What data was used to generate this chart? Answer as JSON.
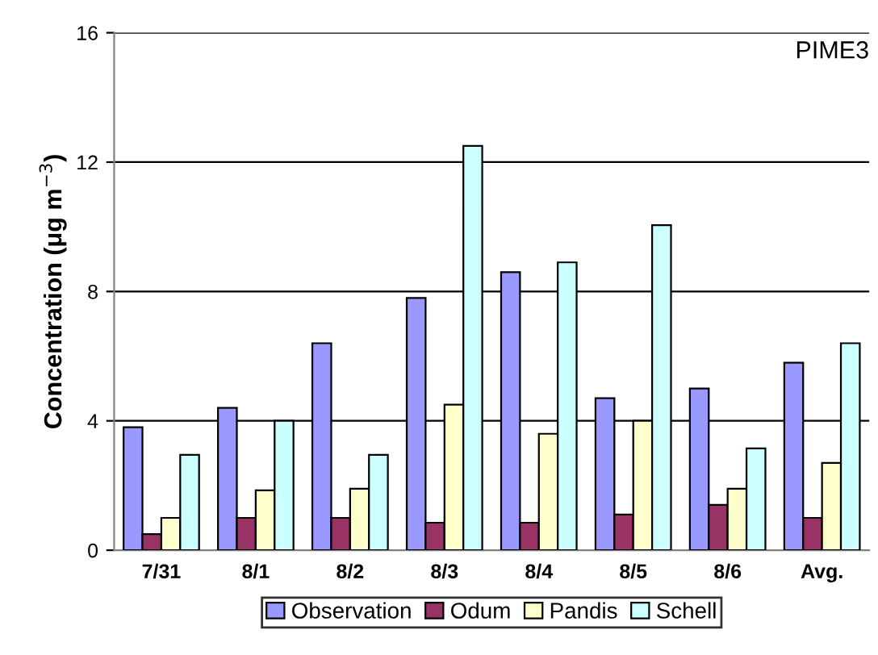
{
  "chart_data": {
    "type": "bar",
    "title": "PIME3",
    "ylabel": "Concentration (μg m$^{−3}$)",
    "categories": [
      "7/31",
      "8/1",
      "8/2",
      "8/3",
      "8/4",
      "8/5",
      "8/6",
      "Avg."
    ],
    "series": [
      {
        "name": "Observation",
        "color": "#9999ff",
        "values": [
          3.8,
          4.4,
          6.4,
          7.8,
          8.6,
          4.7,
          5.0,
          5.8
        ]
      },
      {
        "name": "Odum",
        "color": "#993366",
        "values": [
          0.5,
          1.0,
          1.0,
          0.85,
          0.85,
          1.1,
          1.4,
          1.0
        ]
      },
      {
        "name": "Pandis",
        "color": "#ffffcc",
        "values": [
          1.0,
          1.85,
          1.9,
          4.5,
          3.6,
          4.0,
          1.9,
          2.7
        ]
      },
      {
        "name": "Schell",
        "color": "#ccffff",
        "values": [
          2.95,
          4.0,
          2.95,
          12.5,
          8.9,
          10.05,
          3.15,
          6.4
        ]
      }
    ],
    "ylim": [
      0,
      16
    ],
    "yticks": [
      0,
      4,
      8,
      12,
      16
    ],
    "grid": "y",
    "legend": "bottom"
  }
}
